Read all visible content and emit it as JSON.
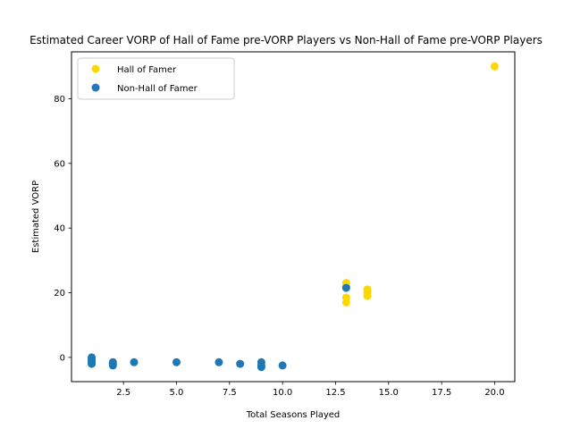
{
  "chart_data": {
    "type": "scatter",
    "title": "Estimated Career VORP of Hall of Fame pre-VORP Players vs Non-Hall of Fame pre-VORP Players",
    "xlabel": "Total Seasons Played",
    "ylabel": "Estimated VORP",
    "xlim": [
      0.05,
      20.95
    ],
    "ylim": [
      -7.5,
      94.5
    ],
    "xticks": [
      2.5,
      5.0,
      7.5,
      10.0,
      12.5,
      15.0,
      17.5,
      20.0
    ],
    "xtick_labels": [
      "2.5",
      "5.0",
      "7.5",
      "10.0",
      "12.5",
      "15.0",
      "17.5",
      "20.0"
    ],
    "yticks": [
      0,
      20,
      40,
      60,
      80
    ],
    "ytick_labels": [
      "0",
      "20",
      "40",
      "60",
      "80"
    ],
    "grid": false,
    "legend_position": "top-left",
    "series": [
      {
        "name": "Hall of Famer",
        "color": "#FFD700",
        "points": [
          {
            "x": 20,
            "y": 90
          },
          {
            "x": 13,
            "y": 23
          },
          {
            "x": 13,
            "y": 22
          },
          {
            "x": 13,
            "y": 18.5
          },
          {
            "x": 13,
            "y": 17
          },
          {
            "x": 14,
            "y": 21
          },
          {
            "x": 14,
            "y": 20
          },
          {
            "x": 14,
            "y": 19
          }
        ]
      },
      {
        "name": "Non-Hall of Famer",
        "color": "#1F77B4",
        "points": [
          {
            "x": 13,
            "y": 21.5
          },
          {
            "x": 1,
            "y": 0
          },
          {
            "x": 1,
            "y": -0.5
          },
          {
            "x": 1,
            "y": -1
          },
          {
            "x": 1,
            "y": -1.5
          },
          {
            "x": 1,
            "y": -2
          },
          {
            "x": 2,
            "y": -1.5
          },
          {
            "x": 2,
            "y": -2
          },
          {
            "x": 2,
            "y": -2.5
          },
          {
            "x": 3,
            "y": -1.5
          },
          {
            "x": 5,
            "y": -1.5
          },
          {
            "x": 7,
            "y": -1.5
          },
          {
            "x": 8,
            "y": -2
          },
          {
            "x": 9,
            "y": -1.5
          },
          {
            "x": 9,
            "y": -2.5
          },
          {
            "x": 9,
            "y": -3
          },
          {
            "x": 10,
            "y": -2.5
          }
        ]
      }
    ]
  }
}
